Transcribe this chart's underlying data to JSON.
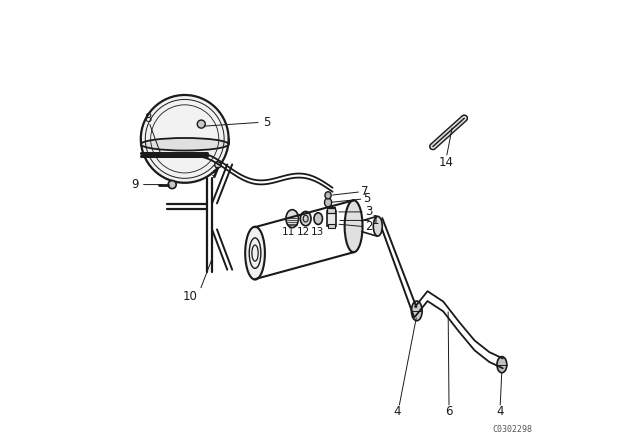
{
  "bg_color": "#ffffff",
  "line_color": "#1a1a1a",
  "fig_width": 6.4,
  "fig_height": 4.48,
  "dpi": 100,
  "watermark": "C0302298"
}
